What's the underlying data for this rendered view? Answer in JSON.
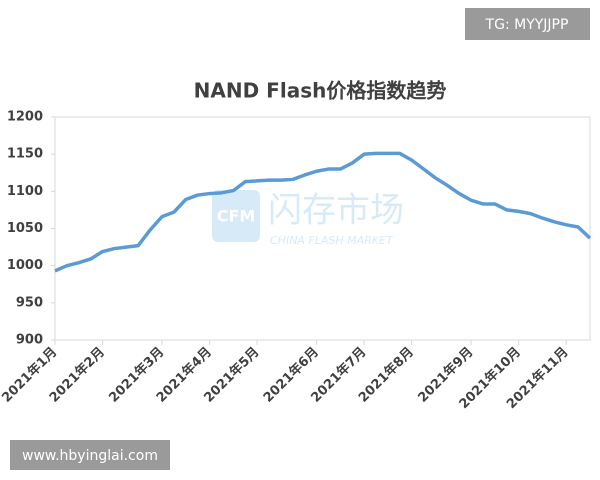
{
  "badge": "TG: MYYJJPP",
  "website": "www.hbyinglai.com",
  "watermark": {
    "logo": "CFM",
    "name": "闪存市场",
    "subtitle": "CHINA FLASH MARKET"
  },
  "chart_data": {
    "type": "line",
    "title": "NAND Flash价格指数趋势",
    "categories": [
      "2021年1月",
      null,
      null,
      null,
      "2021年2月",
      null,
      null,
      null,
      null,
      "2021年3月",
      null,
      null,
      null,
      "2021年4月",
      null,
      null,
      null,
      "2021年5月",
      null,
      null,
      null,
      null,
      "2021年6月",
      null,
      null,
      null,
      "2021年7月",
      null,
      null,
      null,
      "2021年8月",
      null,
      null,
      null,
      null,
      "2021年9月",
      null,
      null,
      null,
      "2021年10月",
      null,
      null,
      null,
      "2021年11月",
      null,
      null
    ],
    "series": [
      {
        "color": "#5b9bd5",
        "values": [
          993,
          1000,
          1004,
          1009,
          1019,
          1023,
          1025,
          1027,
          1048,
          1066,
          1072,
          1089,
          1095,
          1097,
          1098,
          1101,
          1113,
          1114,
          1115,
          1115,
          1116,
          1122,
          1127,
          1130,
          1130,
          1138,
          1150,
          1151,
          1151,
          1151,
          1142,
          1130,
          1118,
          1108,
          1097,
          1088,
          1083,
          1083,
          1075,
          1073,
          1070,
          1064,
          1059,
          1055,
          1052,
          1037
        ]
      }
    ],
    "ylim": [
      900,
      1200
    ],
    "yticks": [
      900,
      950,
      1000,
      1050,
      1100,
      1150,
      1200
    ],
    "grid": false
  }
}
